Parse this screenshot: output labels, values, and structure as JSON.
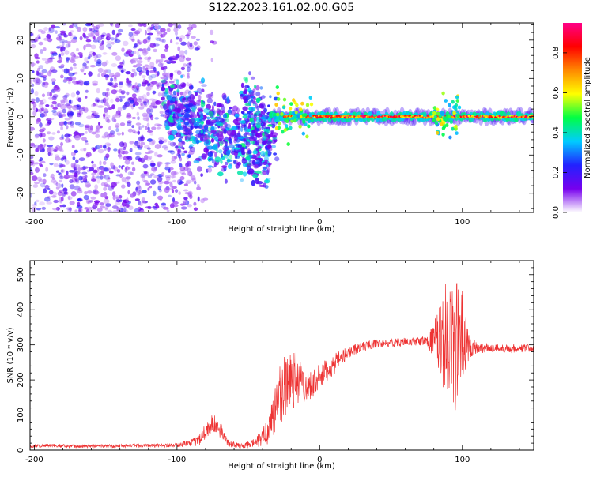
{
  "title": "S122.2023.161.02.00.G05",
  "colors": {
    "snr_line": "#ee3333",
    "background": "#ffffff",
    "axes": "#000000"
  },
  "chart_data": [
    {
      "type": "heatmap",
      "xlabel": "Height of straight line (km)",
      "ylabel": "Frequency (Hz)",
      "xlim": [
        -203,
        150
      ],
      "ylim": [
        -25,
        24.5
      ],
      "x_ticks": [
        -200,
        -100,
        0,
        100
      ],
      "y_ticks": [
        -20,
        -10,
        0,
        10,
        20
      ],
      "colorbar": {
        "label": "Normalized spectral amplitude",
        "range": [
          0,
          0.95
        ],
        "ticks": [
          "0.0",
          "0.2",
          "0.4",
          "0.6",
          "0.8"
        ],
        "colormap": [
          "#ffffff",
          "#7700ee",
          "#2222ff",
          "#00ccff",
          "#00ff44",
          "#ffff00",
          "#ff8800",
          "#ff0000",
          "#ff0088"
        ]
      },
      "regions": [
        {
          "x_range": [
            -203,
            -90
          ],
          "y_range": [
            -25,
            24.5
          ],
          "amplitude_range": [
            0.05,
            0.25
          ],
          "pattern": "scattered noise"
        },
        {
          "x_range": [
            -110,
            -35
          ],
          "y_center_range": [
            3,
            -10
          ],
          "amplitude_range": [
            0.1,
            0.45
          ],
          "pattern": "descending band"
        },
        {
          "x_range": [
            -55,
            -30
          ],
          "y_center_range": [
            6,
            -5
          ],
          "amplitude_range": [
            0.1,
            0.45
          ],
          "pattern": "scattered"
        },
        {
          "x_range": [
            -35,
            150
          ],
          "y_center": 0,
          "amplitude_range": [
            0.3,
            0.95
          ],
          "pattern": "narrow band at 0 Hz"
        }
      ]
    },
    {
      "type": "line",
      "xlabel": "Height of straight line (km)",
      "ylabel": "SNR (10 * v/v)",
      "xlim": [
        -203,
        150
      ],
      "ylim": [
        0,
        540
      ],
      "x_ticks": [
        -200,
        -100,
        0,
        100
      ],
      "y_ticks": [
        0,
        100,
        200,
        300,
        400,
        500
      ],
      "series": [
        {
          "color": "#ee3333",
          "x": [
            -203,
            -190,
            -175,
            -160,
            -145,
            -130,
            -115,
            -100,
            -90,
            -85,
            -80,
            -75,
            -70,
            -65,
            -60,
            -55,
            -50,
            -45,
            -40,
            -35,
            -30,
            -25,
            -20,
            -15,
            -10,
            -5,
            0,
            5,
            10,
            15,
            20,
            25,
            30,
            35,
            40,
            45,
            50,
            55,
            60,
            65,
            70,
            75,
            80,
            85,
            90,
            95,
            100,
            105,
            110,
            120,
            130,
            140,
            150
          ],
          "y": [
            12,
            13,
            12,
            12,
            12,
            13,
            13,
            15,
            20,
            28,
            55,
            75,
            60,
            25,
            15,
            12,
            15,
            22,
            35,
            70,
            130,
            190,
            215,
            200,
            180,
            190,
            205,
            225,
            245,
            262,
            278,
            288,
            295,
            300,
            303,
            305,
            306,
            307,
            308,
            309,
            310,
            311,
            312,
            305,
            330,
            300,
            310,
            296,
            292,
            291,
            290,
            290,
            290
          ],
          "noise_amplitude": [
            5,
            5,
            5,
            5,
            5,
            5,
            5,
            6,
            10,
            15,
            25,
            30,
            25,
            12,
            8,
            7,
            10,
            15,
            25,
            50,
            90,
            110,
            110,
            70,
            45,
            40,
            40,
            35,
            30,
            22,
            18,
            15,
            14,
            13,
            12,
            12,
            12,
            12,
            12,
            12,
            12,
            13,
            50,
            120,
            170,
            200,
            150,
            35,
            18,
            12,
            12,
            12,
            12
          ]
        }
      ]
    }
  ]
}
